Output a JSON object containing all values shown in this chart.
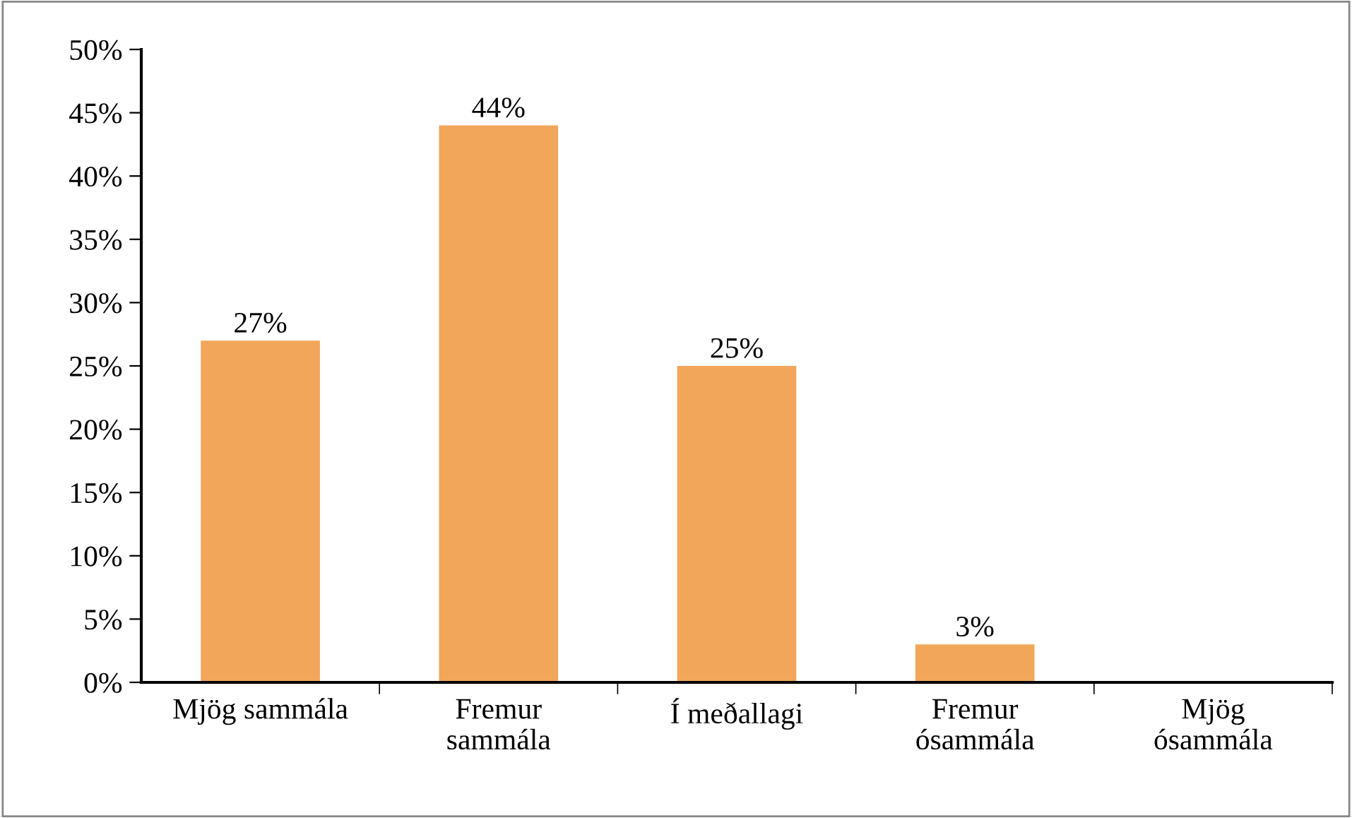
{
  "chart_data": {
    "type": "bar",
    "categories": [
      "Mjög sammála",
      "Fremur\nsammála",
      "Í meðallagi",
      "Fremur\nósammála",
      "Mjög\nósammála"
    ],
    "values": [
      27,
      44,
      25,
      3,
      0
    ],
    "value_labels": [
      "27%",
      "44%",
      "25%",
      "3%",
      null
    ],
    "color": "#f2a65a",
    "ylim": [
      0,
      50
    ],
    "yticks": [
      {
        "value": 0,
        "label": "0%"
      },
      {
        "value": 5,
        "label": "5%"
      },
      {
        "value": 10,
        "label": "10%"
      },
      {
        "value": 15,
        "label": "15%"
      },
      {
        "value": 20,
        "label": "20%"
      },
      {
        "value": 25,
        "label": "25%"
      },
      {
        "value": 30,
        "label": "30%"
      },
      {
        "value": 35,
        "label": "35%"
      },
      {
        "value": 40,
        "label": "40%"
      },
      {
        "value": 45,
        "label": "45%"
      },
      {
        "value": 50,
        "label": "50%"
      }
    ],
    "grid": false,
    "legend": false
  }
}
